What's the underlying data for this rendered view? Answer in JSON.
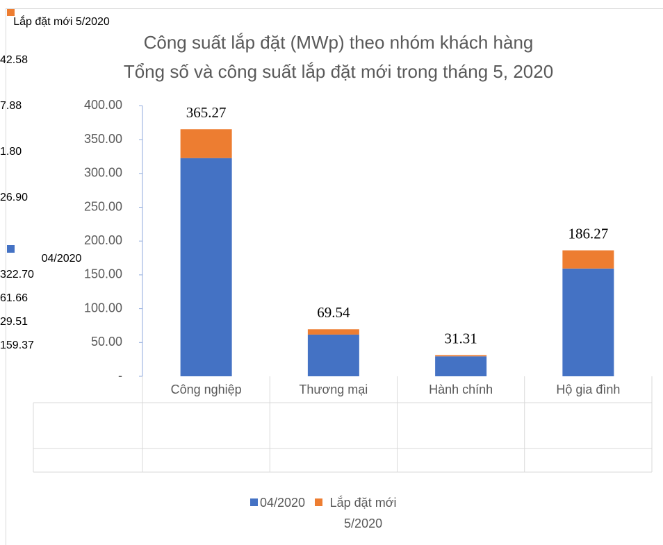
{
  "chart_data": {
    "type": "bar",
    "stacked": true,
    "title": "Công suất lắp đặt (MWp) theo nhóm khách hàng",
    "subtitle": "Tổng số và công suất lắp đặt mới trong tháng 5, 2020",
    "categories": [
      "Công nghiệp",
      "Thương mại",
      "Hành chính",
      "Hộ gia đình"
    ],
    "series": [
      {
        "name": "04/2020",
        "color": "#4472c4",
        "values": [
          322.7,
          61.66,
          29.51,
          159.37
        ],
        "value_labels": [
          "322.70",
          "61.66",
          "29.51",
          "159.37"
        ]
      },
      {
        "name": "Lắp đặt mới 5/2020",
        "color": "#ed7d31",
        "values": [
          42.58,
          7.88,
          1.8,
          26.9
        ],
        "value_labels": [
          "42.58",
          "7.88",
          "1.80",
          "26.90"
        ]
      }
    ],
    "totals": [
      365.27,
      69.54,
      31.31,
      186.27
    ],
    "ylim": [
      0,
      400
    ],
    "yticks": [
      {
        "value": 0,
        "label": "-"
      },
      {
        "value": 50,
        "label": "50.00"
      },
      {
        "value": 100,
        "label": "100.00"
      },
      {
        "value": 150,
        "label": "150.00"
      },
      {
        "value": 200,
        "label": "200.00"
      },
      {
        "value": 250,
        "label": "250.00"
      },
      {
        "value": 300,
        "label": "300.00"
      },
      {
        "value": 350,
        "label": "350.00"
      },
      {
        "value": 400,
        "label": "400.00"
      }
    ],
    "legend": "bottom"
  }
}
